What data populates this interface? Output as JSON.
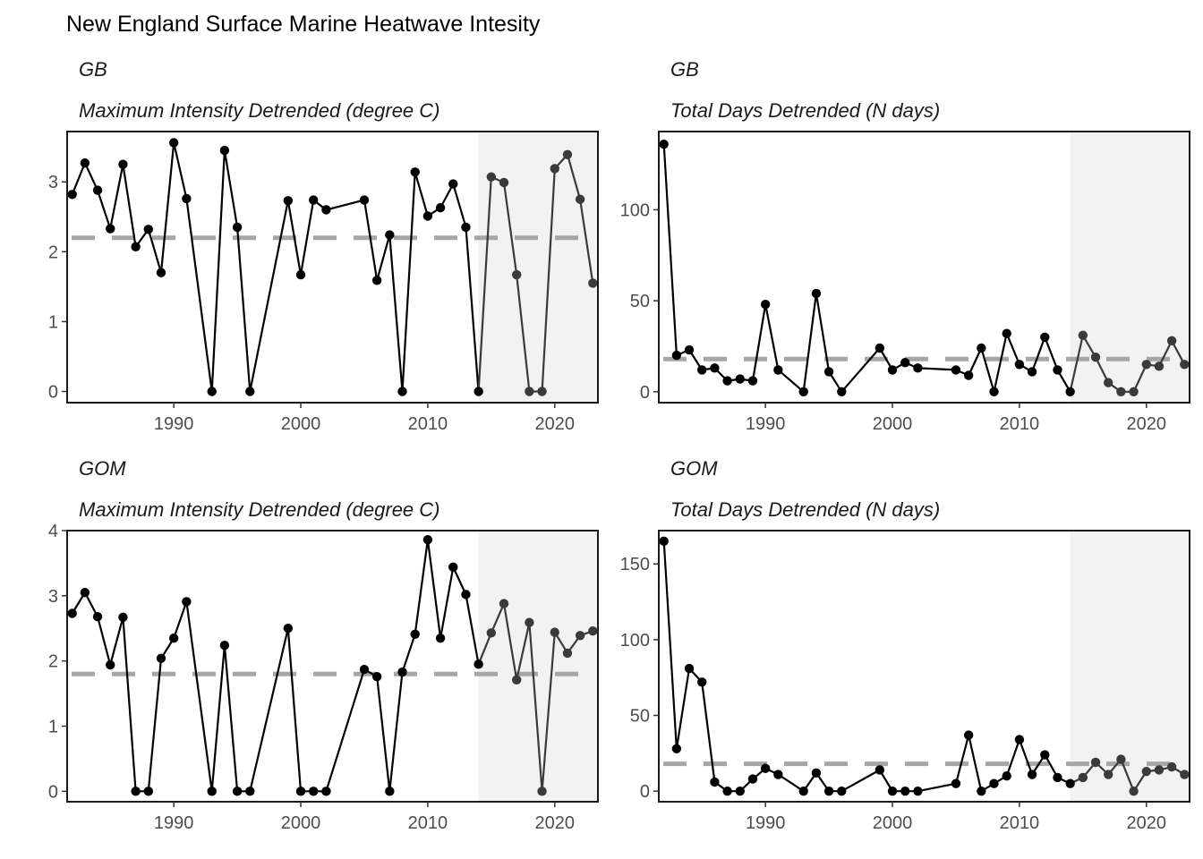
{
  "figure": {
    "title": "New England Surface Marine Heatwave Intesity"
  },
  "style": {
    "line_color": "#000000",
    "recent_line_color": "#3a3a3a",
    "mean_line_color": "#a6a6a6",
    "shade_color": "#f2f2f2",
    "panel_border": "#1a1a1a"
  },
  "chart_data": [
    {
      "type": "line",
      "region": "GB",
      "metric": "Maximum Intensity Detrended (degree C)",
      "x_ticks": [
        1990,
        2000,
        2010,
        2020
      ],
      "y_ticks": [
        0,
        1,
        2,
        3
      ],
      "xlim": [
        1981.6,
        2023.4
      ],
      "ylim": [
        -0.16,
        3.72
      ],
      "mean": 2.2,
      "recent_period_start": 2014,
      "grid": false,
      "x": [
        1982,
        1983,
        1984,
        1985,
        1986,
        1987,
        1988,
        1989,
        1990,
        1991,
        1993,
        1994,
        1995,
        1996,
        1999,
        2000,
        2001,
        2002,
        2005,
        2006,
        2007,
        2008,
        2009,
        2010,
        2011,
        2012,
        2013,
        2014,
        2015,
        2016,
        2017,
        2018,
        2019,
        2020,
        2021,
        2022,
        2023
      ],
      "y": [
        2.82,
        3.27,
        2.88,
        2.33,
        3.25,
        2.07,
        2.32,
        1.7,
        3.56,
        2.76,
        0,
        3.45,
        2.35,
        0,
        2.73,
        1.67,
        2.74,
        2.6,
        2.74,
        1.59,
        2.24,
        0,
        3.14,
        2.51,
        2.63,
        2.97,
        2.35,
        0,
        3.07,
        2.99,
        1.67,
        0,
        0,
        3.19,
        3.39,
        2.75,
        1.55
      ]
    },
    {
      "type": "line",
      "region": "GB",
      "metric": "Total Days Detrended (N days)",
      "x_ticks": [
        1990,
        2000,
        2010,
        2020
      ],
      "y_ticks": [
        0,
        50,
        100
      ],
      "xlim": [
        1981.6,
        2023.4
      ],
      "ylim": [
        -6,
        143
      ],
      "mean": 18,
      "recent_period_start": 2014,
      "grid": false,
      "x": [
        1982,
        1983,
        1984,
        1985,
        1986,
        1987,
        1988,
        1989,
        1990,
        1991,
        1993,
        1994,
        1995,
        1996,
        1999,
        2000,
        2001,
        2002,
        2005,
        2006,
        2007,
        2008,
        2009,
        2010,
        2011,
        2012,
        2013,
        2014,
        2015,
        2016,
        2017,
        2018,
        2019,
        2020,
        2021,
        2022,
        2023
      ],
      "y": [
        136,
        20,
        23,
        12,
        13,
        6,
        7,
        6,
        48,
        12,
        0,
        54,
        11,
        0,
        24,
        12,
        16,
        13,
        12,
        9,
        24,
        0,
        32,
        15,
        11,
        30,
        12,
        0,
        31,
        19,
        5,
        0,
        0,
        15,
        14,
        28,
        15
      ]
    },
    {
      "type": "line",
      "region": "GOM",
      "metric": "Maximum Intensity Detrended (degree C)",
      "x_ticks": [
        1990,
        2000,
        2010,
        2020
      ],
      "y_ticks": [
        0,
        1,
        2,
        3,
        4
      ],
      "xlim": [
        1981.6,
        2023.4
      ],
      "ylim": [
        -0.16,
        4.0
      ],
      "mean": 1.8,
      "recent_period_start": 2014,
      "grid": false,
      "x": [
        1982,
        1983,
        1984,
        1985,
        1986,
        1987,
        1988,
        1989,
        1990,
        1991,
        1993,
        1994,
        1995,
        1996,
        1999,
        2000,
        2001,
        2002,
        2005,
        2006,
        2007,
        2008,
        2009,
        2010,
        2011,
        2012,
        2013,
        2014,
        2015,
        2016,
        2017,
        2018,
        2019,
        2020,
        2021,
        2022,
        2023
      ],
      "y": [
        2.73,
        3.05,
        2.68,
        1.94,
        2.67,
        0,
        0,
        2.04,
        2.35,
        2.91,
        0,
        2.24,
        0,
        0,
        2.5,
        0,
        0,
        0,
        1.87,
        1.76,
        0,
        1.83,
        2.41,
        3.86,
        2.35,
        3.44,
        3.02,
        1.95,
        2.43,
        2.88,
        1.71,
        2.59,
        0,
        2.44,
        2.12,
        2.39,
        2.46
      ]
    },
    {
      "type": "line",
      "region": "GOM",
      "metric": "Total Days Detrended (N days)",
      "x_ticks": [
        1990,
        2000,
        2010,
        2020
      ],
      "y_ticks": [
        0,
        50,
        100,
        150
      ],
      "xlim": [
        1981.6,
        2023.4
      ],
      "ylim": [
        -7,
        172
      ],
      "mean": 18,
      "recent_period_start": 2014,
      "grid": false,
      "x": [
        1982,
        1983,
        1984,
        1985,
        1986,
        1987,
        1988,
        1989,
        1990,
        1991,
        1993,
        1994,
        1995,
        1996,
        1999,
        2000,
        2001,
        2002,
        2005,
        2006,
        2007,
        2008,
        2009,
        2010,
        2011,
        2012,
        2013,
        2014,
        2015,
        2016,
        2017,
        2018,
        2019,
        2020,
        2021,
        2022,
        2023
      ],
      "y": [
        165,
        28,
        81,
        72,
        6,
        0,
        0,
        8,
        15,
        11,
        0,
        12,
        0,
        0,
        14,
        0,
        0,
        0,
        5,
        37,
        0,
        5,
        10,
        34,
        11,
        24,
        9,
        5,
        9,
        19,
        11,
        21,
        0,
        13,
        14,
        16,
        11
      ]
    }
  ]
}
